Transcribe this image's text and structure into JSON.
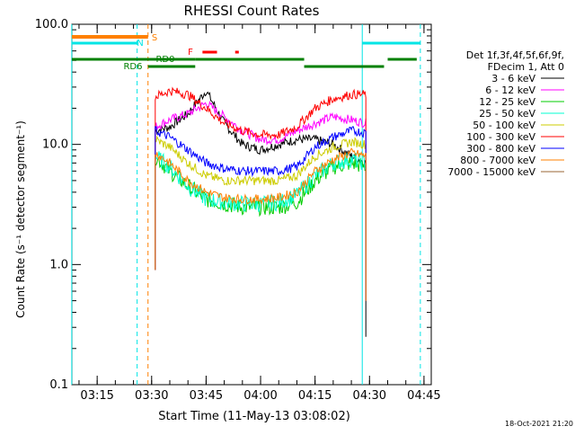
{
  "chart_data": {
    "type": "line",
    "title": "RHESSI Count Rates",
    "xlabel": "Start Time (11-May-13 03:08:02)",
    "ylabel": "Count Rate (s⁻¹ detector segment⁻¹)",
    "yscale": "log",
    "xlim": [
      "03:08:02",
      "04:47:00"
    ],
    "ylim": [
      0.1,
      100.0
    ],
    "x_ticks": [
      "03:15",
      "03:30",
      "03:45",
      "04:00",
      "04:15",
      "04:30",
      "04:45"
    ],
    "y_ticks": [
      "0.1",
      "1.0",
      "10.0",
      "100.0"
    ],
    "legend_placement": "right",
    "legend_header": [
      "Det 1f,3f,4f,5f,6f,9f,",
      "FDecim 1, Att 0"
    ],
    "timestamp": "18-Oct-2021 21:20",
    "data_start": "03:31",
    "data_end": "04:29",
    "series": [
      {
        "name": "3 - 6 keV",
        "color": "#000000",
        "x": [
          "03:31",
          "03:35",
          "03:40",
          "03:45",
          "03:50",
          "03:55",
          "04:00",
          "04:05",
          "04:10",
          "04:15",
          "04:20",
          "04:25",
          "04:29"
        ],
        "values": [
          13,
          14,
          18,
          28,
          15,
          10,
          9,
          10,
          11,
          11,
          10,
          8,
          7
        ]
      },
      {
        "name": "6 - 12 keV",
        "color": "#ff00ff",
        "x": [
          "03:31",
          "03:35",
          "03:40",
          "03:45",
          "03:50",
          "03:55",
          "04:00",
          "04:05",
          "04:10",
          "04:15",
          "04:20",
          "04:25",
          "04:29"
        ],
        "values": [
          14,
          16,
          18,
          22,
          17,
          13,
          11,
          11,
          13,
          15,
          17,
          16,
          15
        ]
      },
      {
        "name": "12 - 25 keV",
        "color": "#00cc00",
        "x": [
          "03:31",
          "03:35",
          "03:40",
          "03:45",
          "03:50",
          "03:55",
          "04:00",
          "04:05",
          "04:10",
          "04:15",
          "04:20",
          "04:25",
          "04:29"
        ],
        "values": [
          8,
          6,
          4.5,
          3.5,
          3.2,
          3,
          3,
          3,
          3.3,
          5,
          6.5,
          7,
          6.5
        ]
      },
      {
        "name": "25 - 50 keV",
        "color": "#00ffd0",
        "x": [
          "03:31",
          "03:35",
          "03:40",
          "03:45",
          "03:50",
          "03:55",
          "04:00",
          "04:05",
          "04:10",
          "04:15",
          "04:20",
          "04:25",
          "04:29"
        ],
        "values": [
          8,
          6.5,
          4.5,
          3.5,
          3.3,
          3.2,
          3.2,
          3.3,
          3.8,
          5.5,
          7,
          7.5,
          7
        ]
      },
      {
        "name": "50 - 100 keV",
        "color": "#cccc00",
        "x": [
          "03:31",
          "03:35",
          "03:40",
          "03:45",
          "03:50",
          "03:55",
          "04:00",
          "04:05",
          "04:10",
          "04:15",
          "04:20",
          "04:25",
          "04:29"
        ],
        "values": [
          11,
          9.5,
          7,
          5.5,
          5,
          5,
          5,
          5,
          5.5,
          8,
          9.5,
          10.5,
          10
        ]
      },
      {
        "name": "100 - 300 keV",
        "color": "#ff0000",
        "x": [
          "03:31",
          "03:35",
          "03:40",
          "03:45",
          "03:50",
          "03:55",
          "04:00",
          "04:05",
          "04:10",
          "04:15",
          "04:20",
          "04:25",
          "04:29"
        ],
        "values": [
          25,
          28,
          26,
          20,
          15,
          13,
          12,
          12,
          14,
          20,
          24,
          26,
          26
        ]
      },
      {
        "name": "300 - 800 keV",
        "color": "#0000ff",
        "x": [
          "03:31",
          "03:35",
          "03:40",
          "03:45",
          "03:50",
          "03:55",
          "04:00",
          "04:05",
          "04:10",
          "04:15",
          "04:20",
          "04:25",
          "04:29"
        ],
        "values": [
          13,
          11.5,
          9,
          7,
          6.3,
          6,
          6,
          6,
          6.5,
          9.5,
          11.5,
          13,
          12.5
        ]
      },
      {
        "name": "800 - 7000 keV",
        "color": "#ff8000",
        "x": [
          "03:31",
          "03:35",
          "03:40",
          "03:45",
          "03:50",
          "03:55",
          "04:00",
          "04:05",
          "04:10",
          "04:15",
          "04:20",
          "04:25",
          "04:29"
        ],
        "values": [
          8.5,
          7,
          5,
          4,
          3.6,
          3.5,
          3.5,
          3.6,
          4,
          6,
          7.5,
          8.5,
          8
        ]
      },
      {
        "name": "7000 - 15000 keV",
        "color": "#996633",
        "x": [],
        "values": []
      }
    ],
    "annotations": [
      {
        "label": "S",
        "color": "#ff8000"
      },
      {
        "label": "N",
        "color": "#00e5e5"
      },
      {
        "label": "RD0",
        "color": "#008000"
      },
      {
        "label": "RD6",
        "color": "#008000"
      },
      {
        "label": "F",
        "color": "#ff0000"
      }
    ],
    "markers": [
      {
        "label": "S",
        "kind": "bar",
        "color": "#ff8000",
        "intervals": [
          [
            "03:08",
            "03:29"
          ]
        ]
      },
      {
        "label": "N",
        "kind": "bar",
        "color": "#00e5e5",
        "intervals": [
          [
            "03:08",
            "03:26"
          ],
          [
            "04:28",
            "04:44"
          ]
        ]
      },
      {
        "label": "RD0",
        "kind": "bar",
        "color": "#008000",
        "intervals": [
          [
            "03:08",
            "03:42"
          ],
          [
            "03:42",
            "04:12"
          ],
          [
            "04:35",
            "04:43"
          ]
        ]
      },
      {
        "label": "RD6",
        "kind": "bar",
        "color": "#008000",
        "intervals": [
          [
            "03:29",
            "03:42"
          ],
          [
            "04:12",
            "04:34"
          ]
        ]
      },
      {
        "label": "F",
        "kind": "bar",
        "color": "#ff0000",
        "intervals": [
          [
            "03:44",
            "03:48"
          ],
          [
            "03:53",
            "03:54"
          ]
        ]
      }
    ],
    "vlines": [
      {
        "x": "03:08",
        "color": "#00e5e5",
        "style": "solid"
      },
      {
        "x": "03:26",
        "color": "#00e5e5",
        "style": "dashed"
      },
      {
        "x": "03:29",
        "color": "#ff8000",
        "style": "dashed"
      },
      {
        "x": "04:28",
        "color": "#00e5e5",
        "style": "solid"
      },
      {
        "x": "04:44",
        "color": "#00e5e5",
        "style": "dashed"
      }
    ]
  }
}
